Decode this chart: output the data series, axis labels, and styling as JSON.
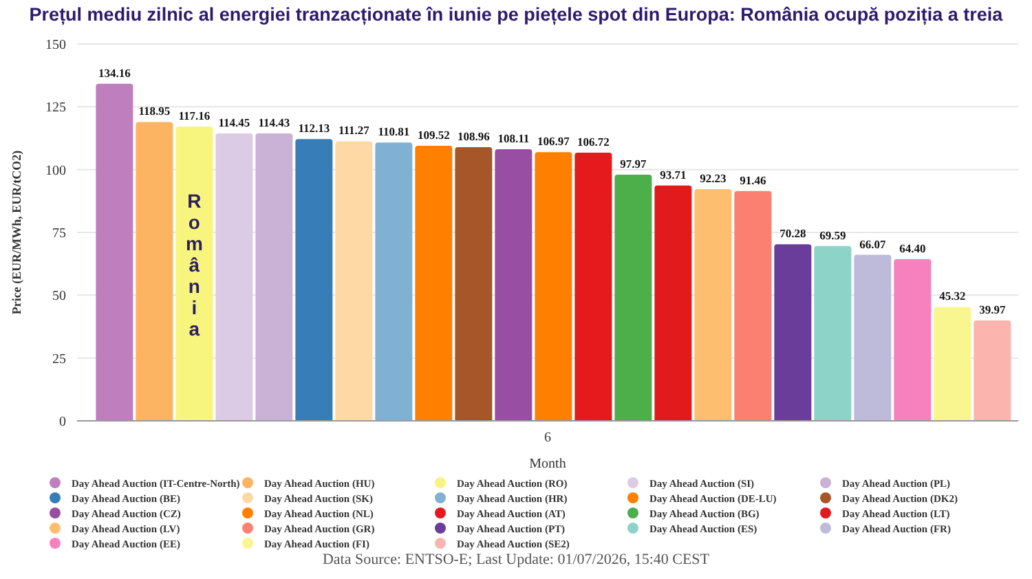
{
  "chart_data": {
    "type": "bar",
    "title": "Prețul mediu zilnic al energiei tranzacționate în iunie pe piețele spot din Europa: România ocupă poziția a treia",
    "xlabel": "Month",
    "ylabel": "Price (EUR/MWh, EUR/tCO2)",
    "categories": [
      "6"
    ],
    "series": [
      {
        "name": "Day Ahead Auction (IT-Centre-North)",
        "color": "#bf7fbf",
        "values": [
          134.16
        ],
        "value_labels": [
          "134.16"
        ]
      },
      {
        "name": "Day Ahead Auction (HU)",
        "color": "#fdb462",
        "values": [
          118.95
        ],
        "value_labels": [
          "118.95"
        ]
      },
      {
        "name": "Day Ahead Auction (RO)",
        "color": "#f8f57f",
        "values": [
          117.16
        ],
        "value_labels": [
          "117.16"
        ]
      },
      {
        "name": "Day Ahead Auction (SI)",
        "color": "#dccbe4",
        "values": [
          114.45
        ],
        "value_labels": [
          "114.45"
        ]
      },
      {
        "name": "Day Ahead Auction (PL)",
        "color": "#cab2d6",
        "values": [
          114.43
        ],
        "value_labels": [
          "114.43"
        ]
      },
      {
        "name": "Day Ahead Auction (BE)",
        "color": "#377eb8",
        "values": [
          112.13
        ],
        "value_labels": [
          "112.13"
        ]
      },
      {
        "name": "Day Ahead Auction (SK)",
        "color": "#fed9a6",
        "values": [
          111.27
        ],
        "value_labels": [
          "111.27"
        ]
      },
      {
        "name": "Day Ahead Auction (HR)",
        "color": "#80b1d3",
        "values": [
          110.81
        ],
        "value_labels": [
          "110.81"
        ]
      },
      {
        "name": "Day Ahead Auction (DE-LU)",
        "color": "#ff7f00",
        "values": [
          109.52
        ],
        "value_labels": [
          "109.52"
        ]
      },
      {
        "name": "Day Ahead Auction (DK2)",
        "color": "#a65628",
        "values": [
          108.96
        ],
        "value_labels": [
          "108.96"
        ]
      },
      {
        "name": "Day Ahead Auction (CZ)",
        "color": "#984ea3",
        "values": [
          108.11
        ],
        "value_labels": [
          "108.11"
        ]
      },
      {
        "name": "Day Ahead Auction (NL)",
        "color": "#ff8000",
        "values": [
          106.97
        ],
        "value_labels": [
          "106.97"
        ]
      },
      {
        "name": "Day Ahead Auction (AT)",
        "color": "#e41a1c",
        "values": [
          106.72
        ],
        "value_labels": [
          "106.72"
        ]
      },
      {
        "name": "Day Ahead Auction (BG)",
        "color": "#4daf4a",
        "values": [
          97.97
        ],
        "value_labels": [
          "97.97"
        ]
      },
      {
        "name": "Day Ahead Auction (LT)",
        "color": "#e31a1c",
        "values": [
          93.71
        ],
        "value_labels": [
          "93.71"
        ]
      },
      {
        "name": "Day Ahead Auction (LV)",
        "color": "#fdbf6f",
        "values": [
          92.23
        ],
        "value_labels": [
          "92.23"
        ]
      },
      {
        "name": "Day Ahead Auction (GR)",
        "color": "#fb8072",
        "values": [
          91.46
        ],
        "value_labels": [
          "91.46"
        ]
      },
      {
        "name": "Day Ahead Auction (PT)",
        "color": "#6a3d9a",
        "values": [
          70.28
        ],
        "value_labels": [
          "70.28"
        ]
      },
      {
        "name": "Day Ahead Auction (ES)",
        "color": "#8dd3c7",
        "values": [
          69.59
        ],
        "value_labels": [
          "69.59"
        ]
      },
      {
        "name": "Day Ahead Auction (FR)",
        "color": "#bebada",
        "values": [
          66.07
        ],
        "value_labels": [
          "66.07"
        ]
      },
      {
        "name": "Day Ahead Auction (EE)",
        "color": "#f781bf",
        "values": [
          64.4
        ],
        "value_labels": [
          "64.40"
        ]
      },
      {
        "name": "Day Ahead Auction (FI)",
        "color": "#faf68f",
        "values": [
          45.32
        ],
        "value_labels": [
          "45.32"
        ]
      },
      {
        "name": "Day Ahead Auction (SE2)",
        "color": "#fbb4ae",
        "values": [
          39.97
        ],
        "value_labels": [
          "39.97"
        ]
      }
    ],
    "ylim": [
      0,
      150
    ],
    "yticks": [
      0,
      25,
      50,
      75,
      100,
      125,
      150
    ],
    "grid": "y",
    "legend": "bottom",
    "annotations": [
      "România",
      "Data Source: ENTSO-E; Last Update: 01/07/2026, 15:40 CEST"
    ]
  }
}
